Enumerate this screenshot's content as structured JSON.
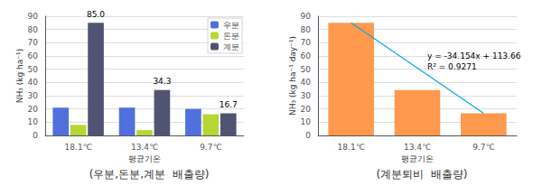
{
  "chart_data": [
    {
      "type": "bar",
      "subtitle": "(우분,돈분,계분  배출량)",
      "xlabel": "평균기온",
      "ylabel": "NH₃ (kg ha⁻¹)",
      "categories": [
        "18.1℃",
        "13.4℃",
        "9.7℃"
      ],
      "series": [
        {
          "name": "우분",
          "values": [
            21,
            21,
            20
          ]
        },
        {
          "name": "돈분",
          "values": [
            8,
            4,
            16
          ]
        },
        {
          "name": "계분",
          "values": [
            85.0,
            34.3,
            16.7
          ],
          "data_labels": true,
          "value_labels": [
            "85.0",
            "34.3",
            "16.7"
          ]
        }
      ],
      "ylim": [
        0,
        90
      ],
      "yticks": [
        0,
        10,
        20,
        30,
        40,
        50,
        60,
        70,
        80,
        90
      ],
      "grid": true,
      "legend": "upper right"
    },
    {
      "type": "bar",
      "subtitle": "(계분퇴비  배출량)",
      "xlabel": "평균기온",
      "ylabel": "NH₃ (kg ha⁻¹ day⁻¹)",
      "categories": [
        "18.1℃",
        "13.4℃",
        "9.7℃"
      ],
      "series": [
        {
          "values": [
            85.0,
            34.3,
            16.7
          ]
        },
        {
          "type": "line",
          "values": [
            85.0,
            null,
            16.7
          ]
        }
      ],
      "annotations": [
        "y = -34.154x + 113.66",
        "R² = 0.9271"
      ],
      "ylim": [
        0,
        90
      ],
      "yticks": [
        0,
        10,
        20,
        30,
        40,
        50,
        60,
        70,
        80,
        90
      ],
      "grid": true
    }
  ]
}
